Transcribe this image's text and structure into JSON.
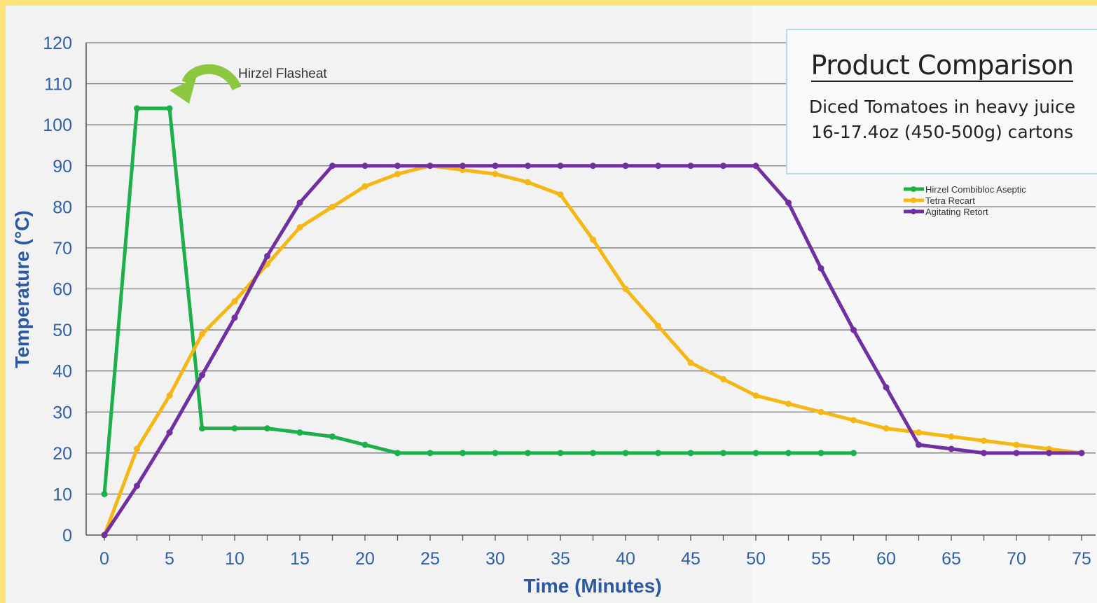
{
  "chart_data": {
    "type": "line",
    "title": "Product Comparison",
    "subtitle": "Diced Tomatoes in heavy juice\n16-17.4oz (450-500g) cartons",
    "xlabel": "Time (Minutes)",
    "ylabel": "Temperature (°C)",
    "xlim": [
      0,
      75
    ],
    "ylim": [
      0,
      120
    ],
    "xticks": [
      0,
      5,
      10,
      15,
      20,
      25,
      30,
      35,
      40,
      45,
      50,
      55,
      60,
      65,
      70,
      75
    ],
    "yticks": [
      0,
      10,
      20,
      30,
      40,
      50,
      60,
      70,
      80,
      90,
      100,
      110,
      120
    ],
    "grid": "horizontal",
    "legend_position": "right",
    "annotation": {
      "text": "Hirzel Flasheat",
      "target_x": 5,
      "target_y": 104
    },
    "series": [
      {
        "name": "Hirzel Combibloc Aseptic",
        "color": "#1db04a",
        "x": [
          0,
          2.5,
          5,
          7.5,
          10,
          12.5,
          15,
          17.5,
          20,
          22.5,
          25,
          27.5,
          30,
          32.5,
          35,
          37.5,
          40,
          42.5,
          45,
          47.5,
          50,
          52.5,
          55,
          57.5
        ],
        "y": [
          10,
          104,
          104,
          26,
          26,
          26,
          25,
          24,
          22,
          20,
          20,
          20,
          20,
          20,
          20,
          20,
          20,
          20,
          20,
          20,
          20,
          20,
          20,
          20
        ]
      },
      {
        "name": "Tetra Recart",
        "color": "#f5b714",
        "x": [
          0,
          2.5,
          5,
          7.5,
          10,
          12.5,
          15,
          17.5,
          20,
          22.5,
          25,
          27.5,
          30,
          32.5,
          35,
          37.5,
          40,
          42.5,
          45,
          47.5,
          50,
          52.5,
          55,
          57.5,
          60,
          62.5,
          65,
          67.5,
          70,
          72.5,
          75
        ],
        "y": [
          0,
          21,
          34,
          49,
          57,
          66,
          75,
          80,
          85,
          88,
          90,
          89,
          88,
          86,
          83,
          72,
          60,
          51,
          42,
          38,
          34,
          32,
          30,
          28,
          26,
          25,
          24,
          23,
          22,
          21,
          20
        ]
      },
      {
        "name": "Agitating Retort",
        "color": "#7030a0",
        "x": [
          0,
          2.5,
          5,
          7.5,
          10,
          12.5,
          15,
          17.5,
          20,
          22.5,
          25,
          27.5,
          30,
          32.5,
          35,
          37.5,
          40,
          42.5,
          45,
          47.5,
          50,
          52.5,
          55,
          57.5,
          60,
          62.5,
          65,
          67.5,
          70,
          72.5,
          75
        ],
        "y": [
          0,
          12,
          25,
          39,
          53,
          68,
          81,
          90,
          90,
          90,
          90,
          90,
          90,
          90,
          90,
          90,
          90,
          90,
          90,
          90,
          90,
          81,
          65,
          50,
          36,
          22,
          21,
          20,
          20,
          20,
          20
        ]
      }
    ]
  }
}
